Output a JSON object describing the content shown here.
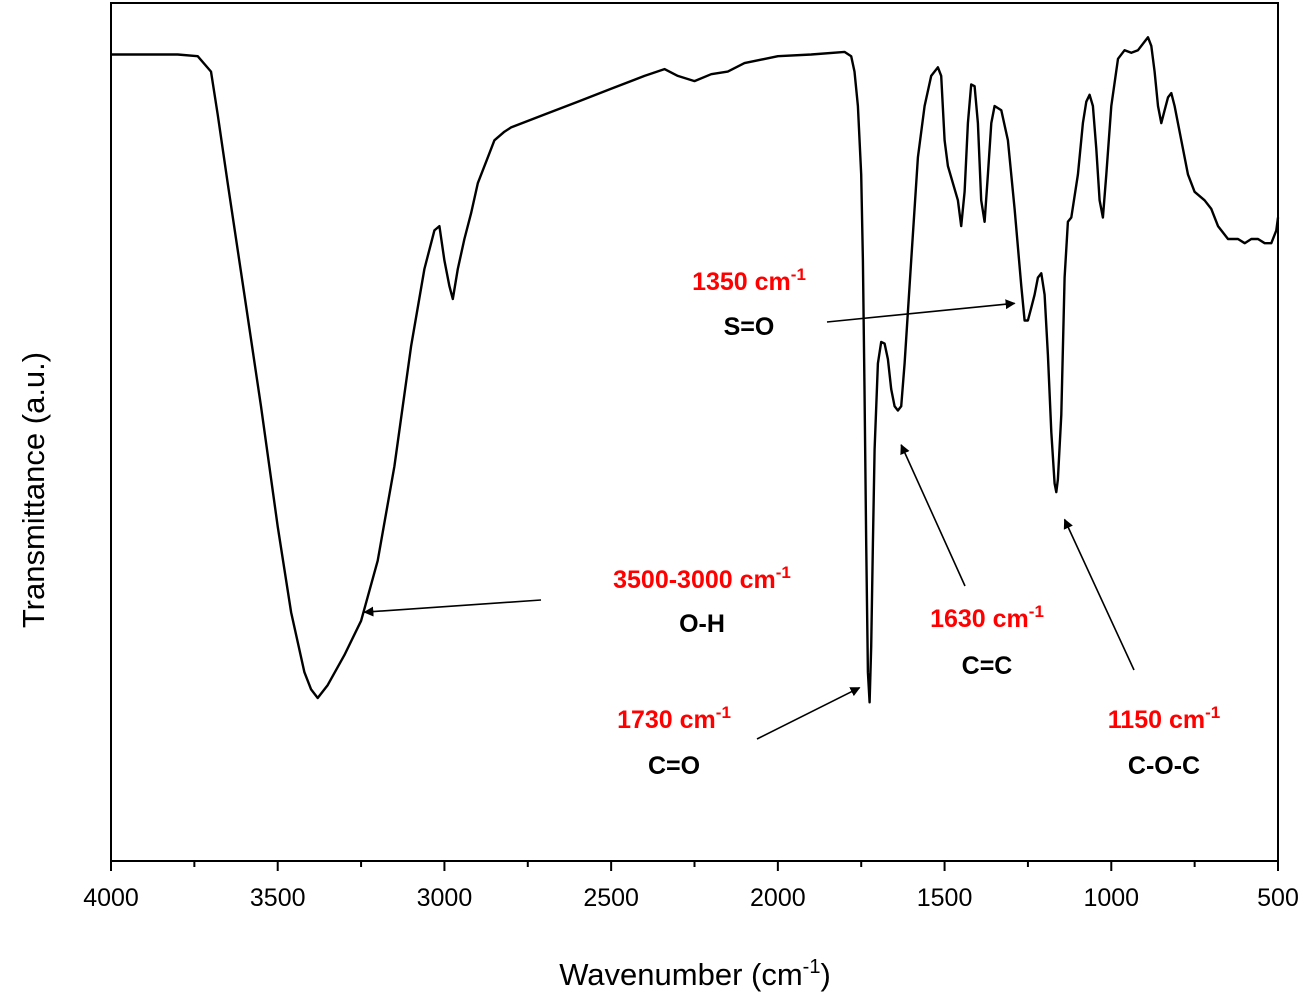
{
  "chart_data": {
    "type": "line",
    "title": "",
    "xlabel": "Wavenumber (cm",
    "xlabel_sup": "-1",
    "xlabel_suffix": ")",
    "ylabel": "Transmittance (a.u.)",
    "xlim": [
      4000,
      500
    ],
    "ylim": [
      0,
      100
    ],
    "x_reversed": true,
    "y_ticks_shown": false,
    "grid": false,
    "legend": "none",
    "x_ticks": [
      {
        "value": 4000,
        "label": "4000"
      },
      {
        "value": 3500,
        "label": "3500"
      },
      {
        "value": 3000,
        "label": "3000"
      },
      {
        "value": 2500,
        "label": "2500"
      },
      {
        "value": 2000,
        "label": "2000"
      },
      {
        "value": 1500,
        "label": "1500"
      },
      {
        "value": 1000,
        "label": "1000"
      },
      {
        "value": 500,
        "label": "500"
      }
    ],
    "series": [
      {
        "color": "#000000",
        "points": [
          [
            4000,
            94.0
          ],
          [
            3900,
            94.0
          ],
          [
            3800,
            94.0
          ],
          [
            3740,
            93.8
          ],
          [
            3700,
            92.0
          ],
          [
            3680,
            87.0
          ],
          [
            3650,
            79.0
          ],
          [
            3600,
            66.0
          ],
          [
            3550,
            53.0
          ],
          [
            3500,
            39.0
          ],
          [
            3460,
            29.0
          ],
          [
            3420,
            22.0
          ],
          [
            3400,
            20.0
          ],
          [
            3380,
            19.0
          ],
          [
            3350,
            20.5
          ],
          [
            3300,
            24.0
          ],
          [
            3250,
            28.0
          ],
          [
            3200,
            35.0
          ],
          [
            3150,
            46.0
          ],
          [
            3100,
            60.0
          ],
          [
            3060,
            69.0
          ],
          [
            3030,
            73.5
          ],
          [
            3015,
            74.0
          ],
          [
            3000,
            70.0
          ],
          [
            2985,
            67.0
          ],
          [
            2975,
            65.5
          ],
          [
            2960,
            69.0
          ],
          [
            2940,
            72.5
          ],
          [
            2920,
            75.5
          ],
          [
            2900,
            79.0
          ],
          [
            2870,
            82.0
          ],
          [
            2850,
            84.0
          ],
          [
            2820,
            85.0
          ],
          [
            2800,
            85.5
          ],
          [
            2700,
            87.0
          ],
          [
            2600,
            88.5
          ],
          [
            2500,
            90.0
          ],
          [
            2400,
            91.5
          ],
          [
            2340,
            92.3
          ],
          [
            2300,
            91.5
          ],
          [
            2250,
            90.9
          ],
          [
            2200,
            91.7
          ],
          [
            2150,
            92.0
          ],
          [
            2100,
            93.0
          ],
          [
            2000,
            93.8
          ],
          [
            1900,
            94.0
          ],
          [
            1800,
            94.3
          ],
          [
            1780,
            93.8
          ],
          [
            1770,
            92.0
          ],
          [
            1760,
            88.0
          ],
          [
            1750,
            80.0
          ],
          [
            1745,
            70.0
          ],
          [
            1740,
            55.0
          ],
          [
            1735,
            37.0
          ],
          [
            1730,
            22.0
          ],
          [
            1725,
            18.5
          ],
          [
            1720,
            25.0
          ],
          [
            1715,
            37.0
          ],
          [
            1710,
            48.0
          ],
          [
            1700,
            58.0
          ],
          [
            1690,
            60.5
          ],
          [
            1680,
            60.3
          ],
          [
            1670,
            58.5
          ],
          [
            1660,
            55.0
          ],
          [
            1650,
            53.0
          ],
          [
            1640,
            52.5
          ],
          [
            1630,
            53.0
          ],
          [
            1620,
            58.0
          ],
          [
            1600,
            70.0
          ],
          [
            1580,
            82.0
          ],
          [
            1560,
            88.0
          ],
          [
            1540,
            91.5
          ],
          [
            1520,
            92.5
          ],
          [
            1510,
            91.5
          ],
          [
            1500,
            84.0
          ],
          [
            1490,
            81.0
          ],
          [
            1475,
            79.0
          ],
          [
            1460,
            77.0
          ],
          [
            1450,
            74.0
          ],
          [
            1440,
            78.0
          ],
          [
            1430,
            86.0
          ],
          [
            1420,
            90.5
          ],
          [
            1410,
            90.3
          ],
          [
            1400,
            86.0
          ],
          [
            1390,
            77.0
          ],
          [
            1380,
            74.5
          ],
          [
            1370,
            80.0
          ],
          [
            1360,
            86.0
          ],
          [
            1350,
            88.0
          ],
          [
            1330,
            87.5
          ],
          [
            1310,
            84.0
          ],
          [
            1290,
            76.0
          ],
          [
            1270,
            67.0
          ],
          [
            1260,
            63.0
          ],
          [
            1250,
            63.0
          ],
          [
            1240,
            64.5
          ],
          [
            1230,
            66.0
          ],
          [
            1220,
            68.0
          ],
          [
            1210,
            68.5
          ],
          [
            1200,
            66.0
          ],
          [
            1190,
            59.0
          ],
          [
            1180,
            50.0
          ],
          [
            1170,
            44.0
          ],
          [
            1165,
            43.0
          ],
          [
            1160,
            44.5
          ],
          [
            1150,
            52.0
          ],
          [
            1140,
            68.0
          ],
          [
            1130,
            74.5
          ],
          [
            1120,
            75.0
          ],
          [
            1100,
            80.0
          ],
          [
            1085,
            86.0
          ],
          [
            1075,
            88.5
          ],
          [
            1065,
            89.3
          ],
          [
            1055,
            88.0
          ],
          [
            1045,
            83.0
          ],
          [
            1035,
            77.0
          ],
          [
            1025,
            75.0
          ],
          [
            1015,
            80.0
          ],
          [
            1000,
            88.0
          ],
          [
            980,
            93.5
          ],
          [
            960,
            94.5
          ],
          [
            940,
            94.2
          ],
          [
            920,
            94.5
          ],
          [
            900,
            95.5
          ],
          [
            890,
            96.0
          ],
          [
            880,
            95.0
          ],
          [
            870,
            92.0
          ],
          [
            860,
            88.0
          ],
          [
            850,
            86.0
          ],
          [
            840,
            87.5
          ],
          [
            830,
            89.0
          ],
          [
            820,
            89.5
          ],
          [
            810,
            88.0
          ],
          [
            790,
            84.0
          ],
          [
            770,
            80.0
          ],
          [
            750,
            78.0
          ],
          [
            720,
            77.0
          ],
          [
            700,
            76.0
          ],
          [
            680,
            74.0
          ],
          [
            650,
            72.5
          ],
          [
            620,
            72.5
          ],
          [
            600,
            72.0
          ],
          [
            580,
            72.5
          ],
          [
            560,
            72.5
          ],
          [
            540,
            72.0
          ],
          [
            520,
            72.0
          ],
          [
            505,
            73.5
          ],
          [
            500,
            75.0
          ]
        ]
      }
    ],
    "annotations": [
      {
        "wavenumber": "1350 cm",
        "sup": "-1",
        "group": "S=O",
        "wn_color": "#ff0000",
        "target": [
          1290,
          65.0
        ]
      },
      {
        "wavenumber": "3500-3000 cm",
        "sup": "-1",
        "group": "O-H",
        "wn_color": "#ff0000",
        "target": [
          3240,
          29.0
        ]
      },
      {
        "wavenumber": "1630 cm",
        "sup": "-1",
        "group": "C=C",
        "wn_color": "#ff0000",
        "target": [
          1630,
          48.5
        ]
      },
      {
        "wavenumber": "1730 cm",
        "sup": "-1",
        "group": "C=O",
        "wn_color": "#ff0000",
        "target": [
          1755,
          20.2
        ]
      },
      {
        "wavenumber": "1150 cm",
        "sup": "-1",
        "group": "C-O-C",
        "wn_color": "#ff0000",
        "target": [
          1140,
          39.8
        ]
      }
    ]
  }
}
